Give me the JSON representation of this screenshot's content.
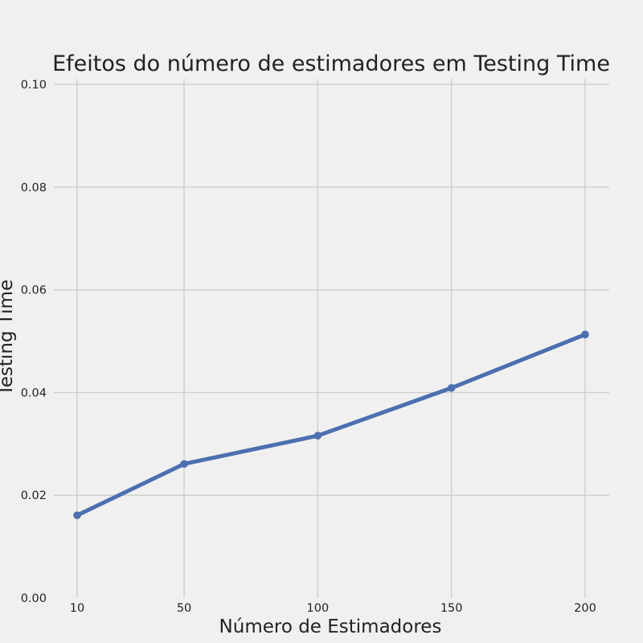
{
  "chart_data": {
    "type": "line",
    "title": "Efeitos do número de estimadores em Testing Time",
    "xlabel": "Número de Estimadores",
    "ylabel": "Testing Time",
    "x": [
      10,
      50,
      100,
      150,
      200
    ],
    "series": [
      {
        "values": [
          0.0161,
          0.0261,
          0.0316,
          0.0409,
          0.0513
        ]
      }
    ],
    "xticks": [
      "10",
      "50",
      "100",
      "150",
      "200"
    ],
    "yticks": [
      "0.00",
      "0.02",
      "0.04",
      "0.06",
      "0.08",
      "0.10"
    ],
    "ylim": [
      0,
      0.1
    ],
    "xlim": [
      10,
      200
    ],
    "grid": true,
    "line_color": "#4c6fb0",
    "background": "#f0f0f0",
    "grid_color": "#cbcbcb"
  }
}
